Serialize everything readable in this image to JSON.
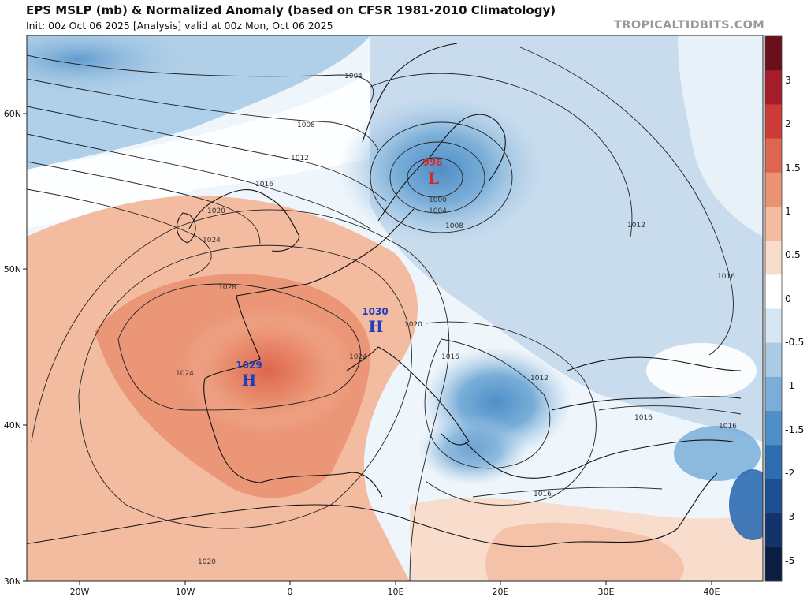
{
  "header": {
    "title": "EPS MSLP (mb) & Normalized Anomaly (based on CFSR 1981-2010 Climatology)",
    "subtitle": "Init: 00z Oct 06 2025   [Analysis]   valid at 00z Mon, Oct 06 2025",
    "brand": "TROPICALTIDBITS.COM"
  },
  "axes": {
    "lat_labels": [
      "60N",
      "50N",
      "40N",
      "30N"
    ],
    "lon_labels": [
      "20W",
      "10W",
      "0",
      "10E",
      "20E",
      "30E",
      "40E"
    ]
  },
  "colorbar": {
    "labels": [
      "3",
      "2",
      "1.5",
      "1",
      "0.5",
      "0",
      "-0.5",
      "-1",
      "-1.5",
      "-2",
      "-3",
      "-5"
    ],
    "colors": [
      "#6b0f1a",
      "#a51c2a",
      "#cc3a3a",
      "#de6650",
      "#ea9272",
      "#f3bba0",
      "#f8dccc",
      "#ffffff",
      "#d6e6f2",
      "#a9cbe5",
      "#7aaed8",
      "#4f8fc8",
      "#2e6db0",
      "#1d4f94",
      "#14326c",
      "#0b1d42"
    ]
  },
  "isobars": {
    "labels": [
      "1004",
      "1008",
      "1012",
      "1016",
      "1020",
      "1024",
      "1028",
      "1000",
      "1004",
      "1008",
      "1012",
      "1016",
      "1020",
      "1024",
      "1016",
      "1012",
      "1016",
      "1016",
      "1016",
      "1020",
      "1024"
    ]
  },
  "pressure_centers": [
    {
      "name": "low-scandinavia",
      "value": "996",
      "letter": "L",
      "color": "#d62828"
    },
    {
      "name": "high-alps",
      "value": "1030",
      "letter": "H",
      "color": "#1f3fbf"
    },
    {
      "name": "high-iberia",
      "value": "1029",
      "letter": "H",
      "color": "#1f3fbf"
    }
  ]
}
